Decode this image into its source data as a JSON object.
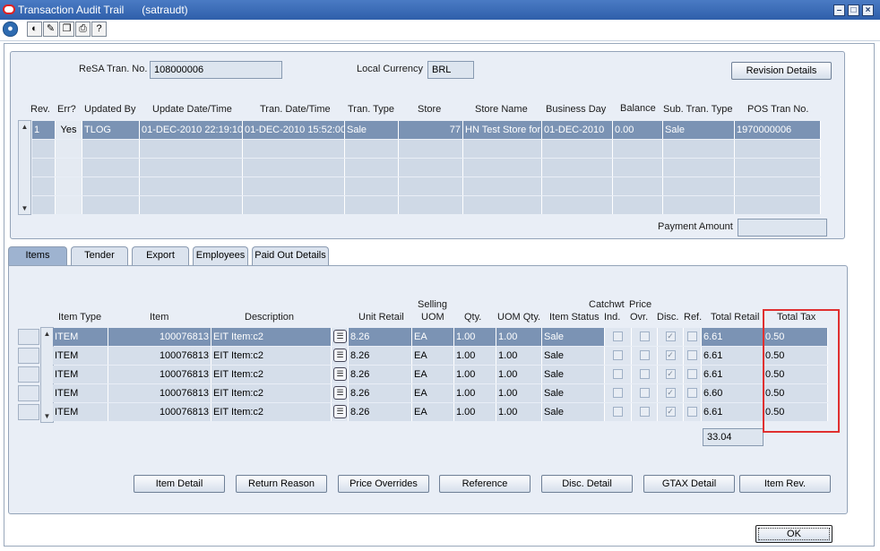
{
  "window": {
    "title": "Transaction Audit Trail",
    "user": "(satraudt)"
  },
  "header": {
    "resa_tran_no_label": "ReSA Tran. No.",
    "resa_tran_no_value": "108000006",
    "local_currency_label": "Local Currency",
    "local_currency_value": "BRL",
    "revision_details_label": "Revision Details"
  },
  "revisions": {
    "columns": [
      "Rev.",
      "Err?",
      "Updated By",
      "Update Date/Time",
      "Tran. Date/Time",
      "Tran. Type",
      "Store",
      "Store Name",
      "Business Day",
      "Balance",
      "Sub. Tran. Type",
      "POS Tran No."
    ],
    "rows": [
      {
        "rev": "1",
        "err": "Yes",
        "updated_by": "TLOG",
        "update_dt": "01-DEC-2010 22:19:10",
        "tran_dt": "01-DEC-2010 15:52:00",
        "tran_type": "Sale",
        "store": "77",
        "store_name": "HN Test Store for",
        "business_day": "01-DEC-2010",
        "balance": "0.00",
        "sub_type": "Sale",
        "pos_tran": "1970000006"
      }
    ],
    "payment_amount_label": "Payment Amount",
    "payment_amount_value": ""
  },
  "tabs": [
    "Items",
    "Tender",
    "Export",
    "Employees",
    "Paid Out Details"
  ],
  "items": {
    "headers": {
      "item_type": "Item Type",
      "item": "Item",
      "description": "Description",
      "unit_retail": "Unit Retail",
      "selling_uom_1": "Selling",
      "selling_uom_2": "UOM",
      "qty": "Qty.",
      "uom_qty": "UOM Qty.",
      "item_status": "Item Status",
      "catchwt_1": "Catchwt",
      "catchwt_2": "Ind.",
      "price_1": "Price",
      "price_2": "Ovr.",
      "disc": "Disc.",
      "ref": "Ref.",
      "total_retail": "Total Retail",
      "total_tax": "Total Tax"
    },
    "rows": [
      {
        "type": "ITEM",
        "item": "100076813",
        "desc": "EIT Item:c2",
        "unit_retail": "8.26",
        "uom": "EA",
        "qty": "1.00",
        "uom_qty": "1.00",
        "status": "Sale",
        "disc": true,
        "total_retail": "6.61",
        "total_tax": "0.50"
      },
      {
        "type": "ITEM",
        "item": "100076813",
        "desc": "EIT Item:c2",
        "unit_retail": "8.26",
        "uom": "EA",
        "qty": "1.00",
        "uom_qty": "1.00",
        "status": "Sale",
        "disc": true,
        "total_retail": "6.61",
        "total_tax": "0.50"
      },
      {
        "type": "ITEM",
        "item": "100076813",
        "desc": "EIT Item:c2",
        "unit_retail": "8.26",
        "uom": "EA",
        "qty": "1.00",
        "uom_qty": "1.00",
        "status": "Sale",
        "disc": true,
        "total_retail": "6.61",
        "total_tax": "0.50"
      },
      {
        "type": "ITEM",
        "item": "100076813",
        "desc": "EIT Item:c2",
        "unit_retail": "8.26",
        "uom": "EA",
        "qty": "1.00",
        "uom_qty": "1.00",
        "status": "Sale",
        "disc": true,
        "total_retail": "6.60",
        "total_tax": "0.50"
      },
      {
        "type": "ITEM",
        "item": "100076813",
        "desc": "EIT Item:c2",
        "unit_retail": "8.26",
        "uom": "EA",
        "qty": "1.00",
        "uom_qty": "1.00",
        "status": "Sale",
        "disc": true,
        "total_retail": "6.61",
        "total_tax": "0.50"
      }
    ],
    "total_retail_sum": "33.04"
  },
  "buttons": [
    "Item Detail",
    "Return Reason",
    "Price Overrides",
    "Reference",
    "Disc. Detail",
    "GTAX Detail",
    "Item Rev."
  ],
  "ok_label": "OK",
  "colors": {
    "title_bar": "#2f5faa",
    "selected_row": "#7b93b4",
    "highlight_box": "#e03030"
  }
}
